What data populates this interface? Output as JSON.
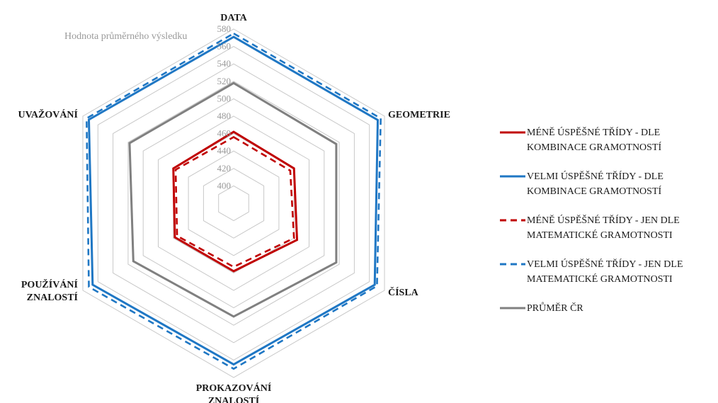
{
  "chart_data": {
    "type": "radar",
    "axis_title": "Hodnota průměrného výsledku",
    "axes": [
      [
        "DATA"
      ],
      [
        "GEOMETRIE"
      ],
      [
        "ČÍSLA"
      ],
      [
        "PROKAZOVÁNÍ",
        "ZNALOSTÍ"
      ],
      [
        "POUŽÍVÁNÍ",
        "ZNALOSTÍ"
      ],
      [
        "UVAŽOVÁNÍ"
      ]
    ],
    "rlim": [
      380,
      580
    ],
    "ticks": [
      400,
      420,
      440,
      460,
      480,
      500,
      520,
      540,
      560,
      580
    ],
    "grid": true,
    "legend_position": "right",
    "series": [
      {
        "name": [
          "MÉNĚ ÚSPĚŠNÉ TŘÍDY - DLE",
          "KOMBINACE GRAMOTNOSTÍ"
        ],
        "color": "#c00000",
        "dash": "solid",
        "values": [
          462,
          460,
          464,
          458,
          458,
          460
        ]
      },
      {
        "name": [
          "VELMI ÚSPĚŠNÉ TŘÍDY - DLE",
          "KOMBINACE GRAMOTNOSTÍ"
        ],
        "color": "#1f77c4",
        "dash": "solid",
        "values": [
          571,
          571,
          567,
          565,
          567,
          572
        ]
      },
      {
        "name": [
          "MÉNĚ ÚSPĚŠNÉ TŘÍDY - JEN DLE",
          "MATEMATICKÉ GRAMOTNOSTI"
        ],
        "color": "#c00000",
        "dash": "dashed",
        "values": [
          456,
          455,
          460,
          453,
          455,
          457
        ]
      },
      {
        "name": [
          "VELMI ÚSPĚŠNÉ TŘÍDY - JEN DLE",
          "MATEMATICKÉ GRAMOTNOSTI"
        ],
        "color": "#1f77c4",
        "dash": "dashed",
        "values": [
          575,
          575,
          570,
          570,
          572,
          575
        ]
      },
      {
        "name": [
          "PRŮMĚR ČR"
        ],
        "color": "#808080",
        "dash": "solid",
        "values": [
          518,
          516,
          516,
          510,
          513,
          518
        ]
      }
    ]
  }
}
